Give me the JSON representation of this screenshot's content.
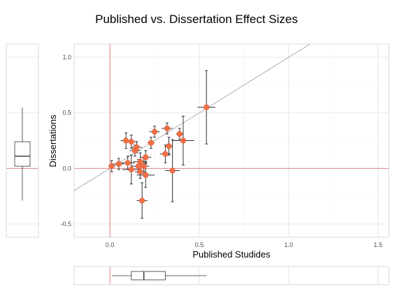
{
  "chart_data": {
    "type": "scatter",
    "title": "Published vs. Dissertation Effect Sizes",
    "xlabel": "Published Studides",
    "ylabel": "Dissertations",
    "xlim": [
      -0.2,
      1.56
    ],
    "ylim": [
      -0.62,
      1.12
    ],
    "x_ticks": [
      "0.0",
      "0.5",
      "1.0",
      "1.5"
    ],
    "y_ticks": [
      "-0.5",
      "0.0",
      "0.5",
      "1.0"
    ],
    "grid": true,
    "reference_lines": {
      "vertical_x": 0,
      "horizontal_y": 0,
      "diagonal_slope": 1
    },
    "point_color": "#f07046",
    "ref_line_color": "#e07a7a",
    "points": [
      {
        "x": 0.01,
        "y": 0.02,
        "xerr": 0.02,
        "yerr": 0.05
      },
      {
        "x": 0.05,
        "y": 0.04,
        "xerr": 0.03,
        "yerr": 0.05
      },
      {
        "x": 0.09,
        "y": 0.25,
        "xerr": 0.03,
        "yerr": 0.07
      },
      {
        "x": 0.1,
        "y": 0.05,
        "xerr": 0.04,
        "yerr": 0.06
      },
      {
        "x": 0.12,
        "y": 0.24,
        "xerr": 0.03,
        "yerr": 0.06
      },
      {
        "x": 0.12,
        "y": -0.01,
        "xerr": 0.05,
        "yerr": 0.13
      },
      {
        "x": 0.14,
        "y": 0.16,
        "xerr": 0.03,
        "yerr": 0.05
      },
      {
        "x": 0.15,
        "y": 0.19,
        "xerr": 0.03,
        "yerr": 0.05
      },
      {
        "x": 0.16,
        "y": 0.02,
        "xerr": 0.04,
        "yerr": 0.06
      },
      {
        "x": 0.17,
        "y": 0.06,
        "xerr": 0.04,
        "yerr": 0.08
      },
      {
        "x": 0.17,
        "y": -0.03,
        "xerr": 0.03,
        "yerr": 0.06
      },
      {
        "x": 0.18,
        "y": -0.29,
        "xerr": 0.03,
        "yerr": 0.16
      },
      {
        "x": 0.19,
        "y": 0.02,
        "xerr": 0.03,
        "yerr": 0.07
      },
      {
        "x": 0.2,
        "y": 0.1,
        "xerr": 0.03,
        "yerr": 0.06
      },
      {
        "x": 0.2,
        "y": -0.06,
        "xerr": 0.05,
        "yerr": 0.11
      },
      {
        "x": 0.23,
        "y": 0.23,
        "xerr": 0.02,
        "yerr": 0.05
      },
      {
        "x": 0.25,
        "y": 0.33,
        "xerr": 0.03,
        "yerr": 0.05
      },
      {
        "x": 0.31,
        "y": 0.13,
        "xerr": 0.03,
        "yerr": 0.08
      },
      {
        "x": 0.32,
        "y": 0.36,
        "xerr": 0.03,
        "yerr": 0.05
      },
      {
        "x": 0.33,
        "y": 0.2,
        "xerr": 0.02,
        "yerr": 0.08
      },
      {
        "x": 0.35,
        "y": -0.02,
        "xerr": 0.04,
        "yerr": 0.28
      },
      {
        "x": 0.39,
        "y": 0.31,
        "xerr": 0.02,
        "yerr": 0.05
      },
      {
        "x": 0.41,
        "y": 0.25,
        "xerr": 0.06,
        "yerr": 0.22
      },
      {
        "x": 0.54,
        "y": 0.55,
        "xerr": 0.05,
        "yerr": 0.33
      }
    ],
    "x_boxplot": {
      "min": 0.01,
      "q1": 0.12,
      "median": 0.19,
      "q3": 0.31,
      "max": 0.54
    },
    "y_boxplot": {
      "min": -0.29,
      "q1": 0.02,
      "median": 0.11,
      "q3": 0.24,
      "max": 0.55
    }
  }
}
